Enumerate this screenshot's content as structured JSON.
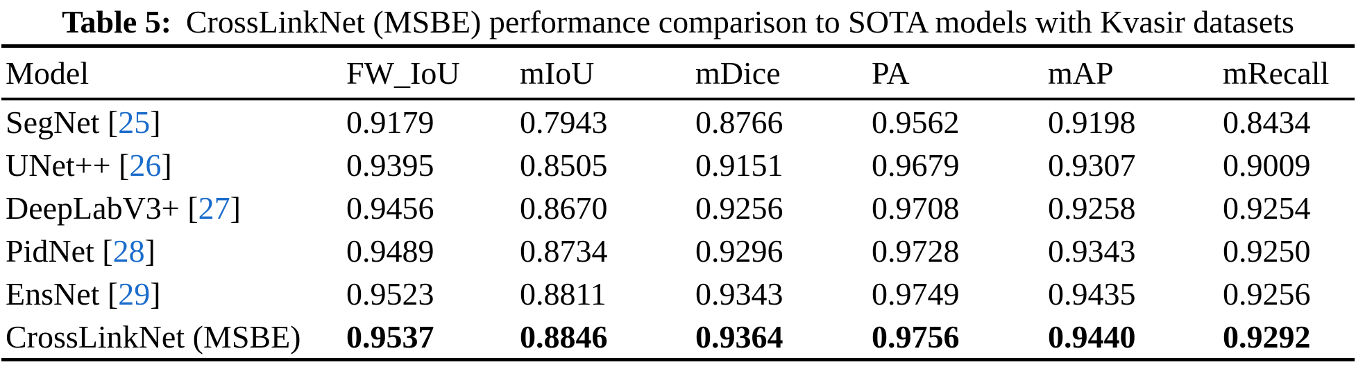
{
  "caption": {
    "label": "Table 5:",
    "text": "CrossLinkNet (MSBE) performance comparison to SOTA models with Kvasir datasets"
  },
  "table": {
    "headers": [
      "Model",
      "FW_IoU",
      "mIoU",
      "mDice",
      "PA",
      "mAP",
      "mRecall"
    ],
    "rows": [
      {
        "model": "SegNet",
        "citation": "25",
        "bold": false,
        "values": [
          "0.9179",
          "0.7943",
          "0.8766",
          "0.9562",
          "0.9198",
          "0.8434"
        ]
      },
      {
        "model": "UNet++",
        "citation": "26",
        "bold": false,
        "values": [
          "0.9395",
          "0.8505",
          "0.9151",
          "0.9679",
          "0.9307",
          "0.9009"
        ]
      },
      {
        "model": "DeepLabV3+",
        "citation": "27",
        "bold": false,
        "values": [
          "0.9456",
          "0.8670",
          "0.9256",
          "0.9708",
          "0.9258",
          "0.9254"
        ]
      },
      {
        "model": "PidNet",
        "citation": "28",
        "bold": false,
        "values": [
          "0.9489",
          "0.8734",
          "0.9296",
          "0.9728",
          "0.9343",
          "0.9250"
        ]
      },
      {
        "model": "EnsNet",
        "citation": "29",
        "bold": false,
        "values": [
          "0.9523",
          "0.8811",
          "0.9343",
          "0.9749",
          "0.9435",
          "0.9256"
        ]
      },
      {
        "model": "CrossLinkNet (MSBE)",
        "citation": null,
        "bold": true,
        "values": [
          "0.9537",
          "0.8846",
          "0.9364",
          "0.9756",
          "0.9440",
          "0.9292"
        ]
      }
    ],
    "colors": {
      "text": "#000000",
      "rule": "#000000",
      "citation": "#1b6ccb"
    }
  }
}
